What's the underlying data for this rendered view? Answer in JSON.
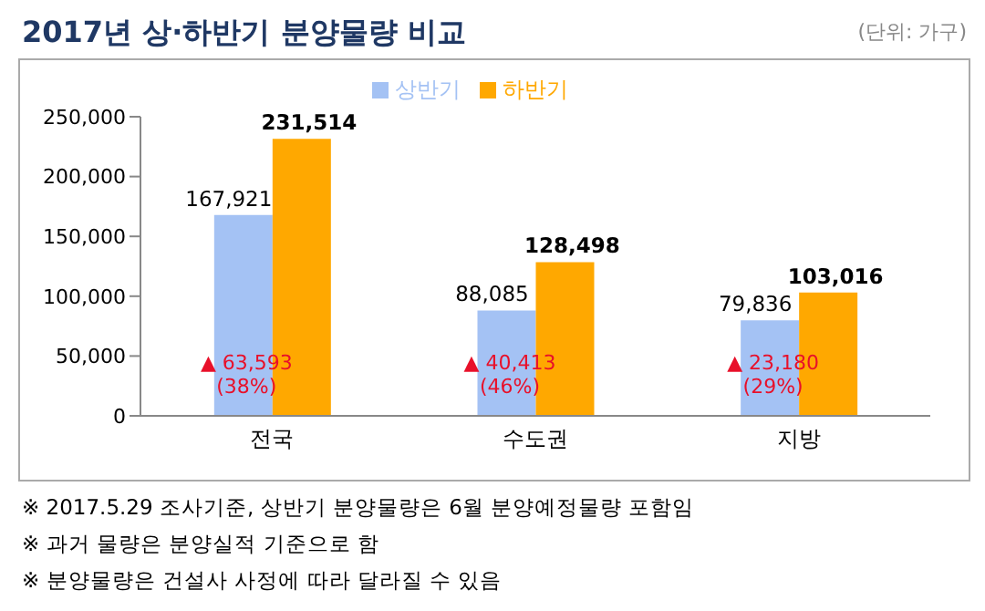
{
  "chart_data": {
    "type": "bar",
    "title": "2017년 상·하반기 분양물량 비교",
    "subtitle": "(단위: 가구)",
    "categories": [
      "전국",
      "수도권",
      "지방"
    ],
    "series": [
      {
        "name": "상반기",
        "color": "#a4c2f4",
        "values": [
          167921,
          88085,
          79836
        ],
        "value_labels": [
          "167,921",
          "88,085",
          "79,836"
        ]
      },
      {
        "name": "하반기",
        "color": "#ffa800",
        "values": [
          231514,
          128498,
          103016
        ],
        "value_labels": [
          "231,514",
          "128,498",
          "103,016"
        ]
      }
    ],
    "ylim": [
      0,
      250000
    ],
    "yticks": [
      {
        "value": 0,
        "label": "0"
      },
      {
        "value": 50000,
        "label": "50,000"
      },
      {
        "value": 100000,
        "label": "100,000"
      },
      {
        "value": 150000,
        "label": "150,000"
      },
      {
        "value": 200000,
        "label": "200,000"
      },
      {
        "value": 250000,
        "label": "250,000"
      }
    ],
    "grid": false,
    "legend": "top",
    "annotations": [
      {
        "text": "▲ 63,593",
        "x": "전국",
        "y": 45000
      },
      {
        "text": "(38%)",
        "x": "전국",
        "y": 25000
      },
      {
        "text": "▲ 40,413",
        "x": "수도권",
        "y": 45000
      },
      {
        "text": "(46%)",
        "x": "수도권",
        "y": 25000
      },
      {
        "text": "▲ 23,180",
        "x": "지방",
        "y": 45000
      },
      {
        "text": "(29%)",
        "x": "지방",
        "y": 25000
      },
      "※ 2017.5.29 조사기준, 상반기 분양물량은 6월 분양예정물량 포함임",
      "※ 과거 물량은 분양실적 기준으로 함",
      "※ 분양물량은 건설사 사정에 따라 달라질 수 있음"
    ]
  }
}
